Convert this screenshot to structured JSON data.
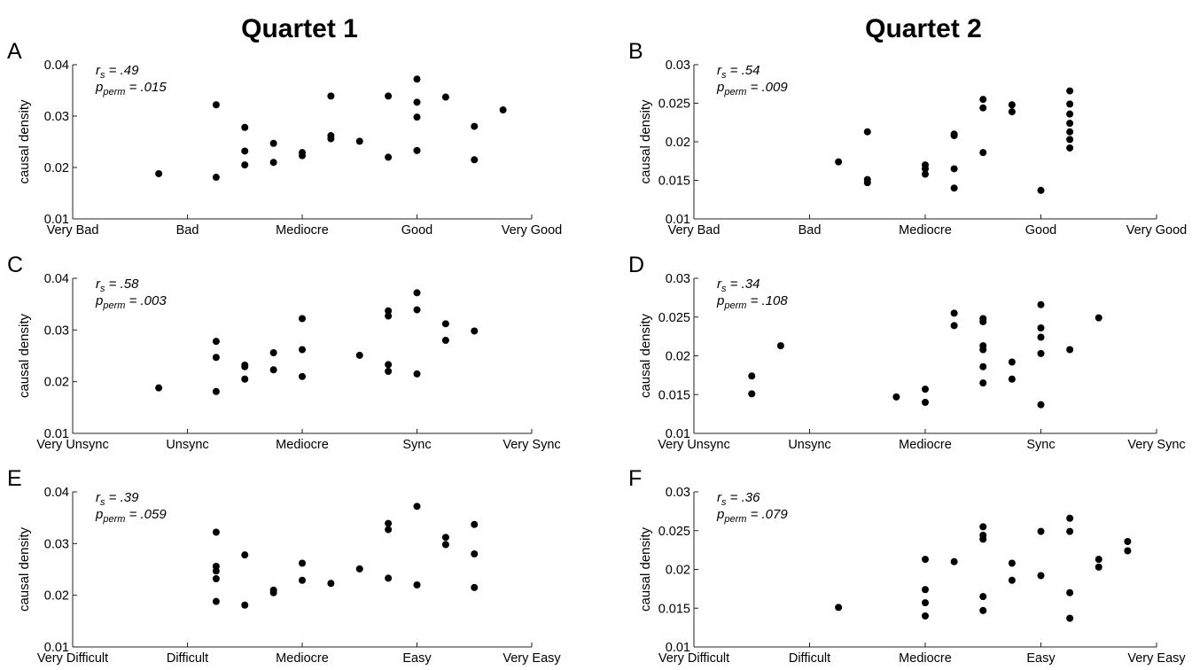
{
  "column_titles": [
    "Quartet 1",
    "Quartet 2"
  ],
  "chart_data": [
    {
      "panel": "A",
      "type": "scatter",
      "xlabel": "",
      "ylabel": "causal density",
      "xtick_labels": [
        "Very Bad",
        "Bad",
        "Mediocre",
        "Good",
        "Very Good"
      ],
      "xlim": [
        1,
        5
      ],
      "ylim": [
        0.01,
        0.04
      ],
      "yticks": [
        "0.01",
        "0.02",
        "0.03",
        "0.04"
      ],
      "stats": {
        "r_label": "r",
        "r_sub": "s",
        "r_value": " = .49",
        "p_label": "p",
        "p_sub": "perm",
        "p_value": " = .015"
      },
      "points": [
        [
          1.75,
          0.0188
        ],
        [
          2.25,
          0.0181
        ],
        [
          2.25,
          0.0322
        ],
        [
          2.5,
          0.0205
        ],
        [
          2.5,
          0.0232
        ],
        [
          2.5,
          0.0278
        ],
        [
          2.75,
          0.021
        ],
        [
          2.75,
          0.0247
        ],
        [
          3.0,
          0.0223
        ],
        [
          3.0,
          0.0229
        ],
        [
          3.25,
          0.0256
        ],
        [
          3.25,
          0.0262
        ],
        [
          3.25,
          0.0339
        ],
        [
          3.5,
          0.0251
        ],
        [
          3.75,
          0.022
        ],
        [
          3.75,
          0.0339
        ],
        [
          4.0,
          0.0233
        ],
        [
          4.0,
          0.0298
        ],
        [
          4.0,
          0.0327
        ],
        [
          4.0,
          0.0372
        ],
        [
          4.25,
          0.0337
        ],
        [
          4.5,
          0.0215
        ],
        [
          4.5,
          0.028
        ],
        [
          4.75,
          0.0312
        ]
      ]
    },
    {
      "panel": "B",
      "type": "scatter",
      "xlabel": "",
      "ylabel": "causal density",
      "xtick_labels": [
        "Very Bad",
        "Bad",
        "Mediocre",
        "Good",
        "Very Good"
      ],
      "xlim": [
        1,
        5
      ],
      "ylim": [
        0.01,
        0.03
      ],
      "yticks": [
        "0.01",
        "0.015",
        "0.02",
        "0.025",
        "0.03"
      ],
      "stats": {
        "r_label": "r",
        "r_sub": "s",
        "r_value": " = .54",
        "p_label": "p",
        "p_sub": "perm",
        "p_value": " = .009"
      },
      "points": [
        [
          2.25,
          0.0174
        ],
        [
          2.5,
          0.0147
        ],
        [
          2.5,
          0.0151
        ],
        [
          2.5,
          0.0213
        ],
        [
          3.0,
          0.0158
        ],
        [
          3.0,
          0.0165
        ],
        [
          3.0,
          0.017
        ],
        [
          3.25,
          0.014
        ],
        [
          3.25,
          0.0165
        ],
        [
          3.25,
          0.0208
        ],
        [
          3.25,
          0.021
        ],
        [
          3.5,
          0.0186
        ],
        [
          3.5,
          0.0244
        ],
        [
          3.5,
          0.0255
        ],
        [
          3.75,
          0.0239
        ],
        [
          3.75,
          0.0248
        ],
        [
          4.0,
          0.0137
        ],
        [
          4.25,
          0.0192
        ],
        [
          4.25,
          0.0203
        ],
        [
          4.25,
          0.0213
        ],
        [
          4.25,
          0.0224
        ],
        [
          4.25,
          0.0236
        ],
        [
          4.25,
          0.0249
        ],
        [
          4.25,
          0.0266
        ]
      ]
    },
    {
      "panel": "C",
      "type": "scatter",
      "xlabel": "",
      "ylabel": "causal density",
      "xtick_labels": [
        "Very Unsync",
        "Unsync",
        "Mediocre",
        "Sync",
        "Very Sync"
      ],
      "xlim": [
        1,
        5
      ],
      "ylim": [
        0.01,
        0.04
      ],
      "yticks": [
        "0.01",
        "0.02",
        "0.03",
        "0.04"
      ],
      "stats": {
        "r_label": "r",
        "r_sub": "s",
        "r_value": " = .58",
        "p_label": "p",
        "p_sub": "perm",
        "p_value": " = .003"
      },
      "points": [
        [
          1.75,
          0.0188
        ],
        [
          2.25,
          0.0181
        ],
        [
          2.25,
          0.0247
        ],
        [
          2.25,
          0.0278
        ],
        [
          2.5,
          0.0205
        ],
        [
          2.5,
          0.0229
        ],
        [
          2.5,
          0.0232
        ],
        [
          2.75,
          0.0223
        ],
        [
          2.75,
          0.0256
        ],
        [
          3.0,
          0.021
        ],
        [
          3.0,
          0.0262
        ],
        [
          3.0,
          0.0322
        ],
        [
          3.5,
          0.0251
        ],
        [
          3.75,
          0.022
        ],
        [
          3.75,
          0.0233
        ],
        [
          3.75,
          0.0327
        ],
        [
          3.75,
          0.0337
        ],
        [
          4.0,
          0.0215
        ],
        [
          4.0,
          0.0339
        ],
        [
          4.0,
          0.0372
        ],
        [
          4.25,
          0.028
        ],
        [
          4.25,
          0.0312
        ],
        [
          4.5,
          0.0298
        ]
      ]
    },
    {
      "panel": "D",
      "type": "scatter",
      "xlabel": "",
      "ylabel": "causal density",
      "xtick_labels": [
        "Very Unsync",
        "Unsync",
        "Mediocre",
        "Sync",
        "Very Sync"
      ],
      "xlim": [
        1,
        5
      ],
      "ylim": [
        0.01,
        0.03
      ],
      "yticks": [
        "0.01",
        "0.015",
        "0.02",
        "0.025",
        "0.03"
      ],
      "stats": {
        "r_label": "r",
        "r_sub": "s",
        "r_value": " = .34",
        "p_label": "p",
        "p_sub": "perm",
        "p_value": " = .108"
      },
      "points": [
        [
          1.5,
          0.0151
        ],
        [
          1.5,
          0.0174
        ],
        [
          1.75,
          0.0213
        ],
        [
          2.75,
          0.0147
        ],
        [
          3.0,
          0.014
        ],
        [
          3.0,
          0.0157
        ],
        [
          3.25,
          0.0239
        ],
        [
          3.25,
          0.0255
        ],
        [
          3.5,
          0.0165
        ],
        [
          3.5,
          0.0186
        ],
        [
          3.5,
          0.0208
        ],
        [
          3.5,
          0.0213
        ],
        [
          3.5,
          0.0244
        ],
        [
          3.5,
          0.0248
        ],
        [
          3.75,
          0.017
        ],
        [
          3.75,
          0.0192
        ],
        [
          4.0,
          0.0137
        ],
        [
          4.0,
          0.0203
        ],
        [
          4.0,
          0.0224
        ],
        [
          4.0,
          0.0236
        ],
        [
          4.0,
          0.0266
        ],
        [
          4.25,
          0.0208
        ],
        [
          4.5,
          0.0249
        ]
      ]
    },
    {
      "panel": "E",
      "type": "scatter",
      "xlabel": "",
      "ylabel": "causal density",
      "xtick_labels": [
        "Very Difficult",
        "Difficult",
        "Mediocre",
        "Easy",
        "Very Easy"
      ],
      "xlim": [
        1,
        5
      ],
      "ylim": [
        0.01,
        0.04
      ],
      "yticks": [
        "0.01",
        "0.02",
        "0.03",
        "0.04"
      ],
      "stats": {
        "r_label": "r",
        "r_sub": "s",
        "r_value": " = .39",
        "p_label": "p",
        "p_sub": "perm",
        "p_value": " = .059"
      },
      "points": [
        [
          2.25,
          0.0188
        ],
        [
          2.25,
          0.0232
        ],
        [
          2.25,
          0.0247
        ],
        [
          2.25,
          0.0256
        ],
        [
          2.25,
          0.0322
        ],
        [
          2.5,
          0.0181
        ],
        [
          2.5,
          0.0278
        ],
        [
          2.75,
          0.0205
        ],
        [
          2.75,
          0.021
        ],
        [
          3.0,
          0.0229
        ],
        [
          3.0,
          0.0262
        ],
        [
          3.25,
          0.0223
        ],
        [
          3.5,
          0.0251
        ],
        [
          3.75,
          0.0233
        ],
        [
          3.75,
          0.0327
        ],
        [
          3.75,
          0.0339
        ],
        [
          4.0,
          0.022
        ],
        [
          4.0,
          0.0372
        ],
        [
          4.25,
          0.0298
        ],
        [
          4.25,
          0.0312
        ],
        [
          4.5,
          0.0215
        ],
        [
          4.5,
          0.028
        ],
        [
          4.5,
          0.0337
        ]
      ]
    },
    {
      "panel": "F",
      "type": "scatter",
      "xlabel": "",
      "ylabel": "causal density",
      "xtick_labels": [
        "Very Difficult",
        "Difficult",
        "Mediocre",
        "Easy",
        "Very Easy"
      ],
      "xlim": [
        1,
        5
      ],
      "ylim": [
        0.01,
        0.03
      ],
      "yticks": [
        "0.01",
        "0.015",
        "0.02",
        "0.025",
        "0.03"
      ],
      "stats": {
        "r_label": "r",
        "r_sub": "s",
        "r_value": " = .36",
        "p_label": "p",
        "p_sub": "perm",
        "p_value": " = .079"
      },
      "points": [
        [
          2.25,
          0.0151
        ],
        [
          3.0,
          0.014
        ],
        [
          3.0,
          0.0157
        ],
        [
          3.0,
          0.0174
        ],
        [
          3.0,
          0.0213
        ],
        [
          3.25,
          0.021
        ],
        [
          3.5,
          0.0147
        ],
        [
          3.5,
          0.0165
        ],
        [
          3.5,
          0.0239
        ],
        [
          3.5,
          0.0244
        ],
        [
          3.5,
          0.0255
        ],
        [
          3.75,
          0.0186
        ],
        [
          3.75,
          0.0208
        ],
        [
          4.0,
          0.0192
        ],
        [
          4.0,
          0.0249
        ],
        [
          4.25,
          0.0137
        ],
        [
          4.25,
          0.017
        ],
        [
          4.25,
          0.0249
        ],
        [
          4.25,
          0.0266
        ],
        [
          4.5,
          0.0203
        ],
        [
          4.5,
          0.0213
        ],
        [
          4.75,
          0.0224
        ],
        [
          4.75,
          0.0236
        ]
      ]
    }
  ]
}
